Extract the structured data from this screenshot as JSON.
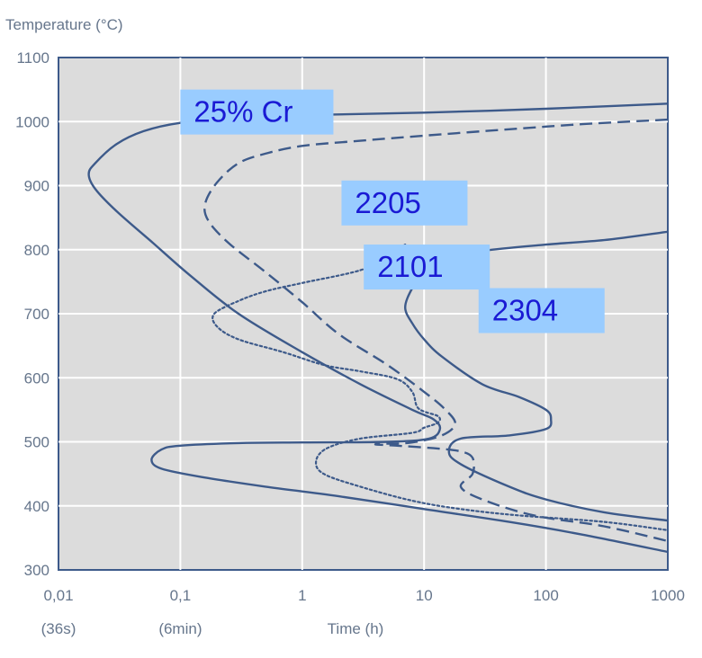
{
  "chart_data": {
    "type": "line",
    "title": "",
    "ylabel": "Temperature (°C)",
    "xlabel": "Time (h)",
    "x_scale": "log",
    "xlim": [
      0.01,
      1000
    ],
    "ylim": [
      300,
      1100
    ],
    "grid": true,
    "x_ticks": [
      {
        "value": 0.01,
        "label": "0,01",
        "sub": "(36s)"
      },
      {
        "value": 0.1,
        "label": "0,1",
        "sub": "(6min)"
      },
      {
        "value": 1,
        "label": "1",
        "sub": ""
      },
      {
        "value": 10,
        "label": "10",
        "sub": ""
      },
      {
        "value": 100,
        "label": "100",
        "sub": ""
      },
      {
        "value": 1000,
        "label": "1000",
        "sub": ""
      }
    ],
    "y_ticks": [
      300,
      400,
      500,
      600,
      700,
      800,
      900,
      1000,
      1100
    ],
    "colors": {
      "curve": "#3d5a8a",
      "plot_bg": "#dcdcdc",
      "grid": "#ffffff",
      "label_bg": "#99ccff",
      "label_text": "#1a1ad4"
    },
    "series": [
      {
        "name": "25% Cr",
        "style": "solid",
        "label_at": [
          0.1,
          1050
        ],
        "points": [
          [
            1000,
            1028
          ],
          [
            100,
            1020
          ],
          [
            10,
            1014
          ],
          [
            1,
            1010
          ],
          [
            0.3,
            1006
          ],
          [
            0.1,
            998
          ],
          [
            0.05,
            985
          ],
          [
            0.03,
            965
          ],
          [
            0.02,
            935
          ],
          [
            0.0177,
            918
          ],
          [
            0.02,
            895
          ],
          [
            0.03,
            860
          ],
          [
            0.06,
            810
          ],
          [
            0.12,
            760
          ],
          [
            0.3,
            700
          ],
          [
            1,
            640
          ],
          [
            3,
            590
          ],
          [
            8,
            550
          ],
          [
            12,
            535
          ],
          [
            13.5,
            520
          ],
          [
            11,
            505
          ],
          [
            5,
            500
          ],
          [
            1,
            499
          ],
          [
            0.3,
            498
          ],
          [
            0.1,
            494
          ],
          [
            0.07,
            488
          ],
          [
            0.058,
            472
          ],
          [
            0.07,
            458
          ],
          [
            0.15,
            445
          ],
          [
            0.5,
            430
          ],
          [
            2,
            415
          ],
          [
            10,
            395
          ],
          [
            50,
            375
          ],
          [
            200,
            355
          ],
          [
            1000,
            328
          ]
        ]
      },
      {
        "name": "2205",
        "style": "dashed",
        "label_at": [
          2.1,
          908
        ],
        "points": [
          [
            1000,
            1003
          ],
          [
            200,
            996
          ],
          [
            50,
            988
          ],
          [
            10,
            978
          ],
          [
            3,
            970
          ],
          [
            1,
            962
          ],
          [
            0.5,
            950
          ],
          [
            0.3,
            935
          ],
          [
            0.2,
            905
          ],
          [
            0.16,
            872
          ],
          [
            0.17,
            845
          ],
          [
            0.25,
            810
          ],
          [
            0.5,
            765
          ],
          [
            1,
            718
          ],
          [
            2,
            668
          ],
          [
            5,
            620
          ],
          [
            10,
            578
          ],
          [
            15,
            550
          ],
          [
            18,
            528
          ],
          [
            14,
            510
          ],
          [
            8,
            499
          ],
          [
            5,
            497
          ],
          [
            4,
            496
          ],
          [
            6,
            494
          ],
          [
            12,
            490
          ],
          [
            20,
            485
          ],
          [
            25,
            475
          ],
          [
            25,
            450
          ],
          [
            20,
            430
          ],
          [
            30,
            410
          ],
          [
            80,
            385
          ],
          [
            300,
            368
          ],
          [
            1000,
            345
          ]
        ]
      },
      {
        "name": "2101",
        "style": "dotted",
        "label_at": [
          3.2,
          808
        ],
        "points": [
          [
            7,
            808
          ],
          [
            5,
            790
          ],
          [
            3,
            768
          ],
          [
            1,
            748
          ],
          [
            0.5,
            735
          ],
          [
            0.3,
            720
          ],
          [
            0.19,
            700
          ],
          [
            0.2,
            680
          ],
          [
            0.3,
            660
          ],
          [
            0.7,
            640
          ],
          [
            1.5,
            620
          ],
          [
            3,
            610
          ],
          [
            6,
            598
          ],
          [
            8,
            578
          ],
          [
            9,
            552
          ],
          [
            13,
            540
          ],
          [
            13,
            530
          ],
          [
            10,
            522
          ],
          [
            8,
            514
          ],
          [
            3,
            505
          ],
          [
            1.6,
            490
          ],
          [
            1.3,
            470
          ],
          [
            1.5,
            450
          ],
          [
            3,
            430
          ],
          [
            8,
            408
          ],
          [
            20,
            395
          ],
          [
            60,
            385
          ],
          [
            300,
            375
          ],
          [
            1000,
            362
          ]
        ]
      },
      {
        "name": "2304",
        "style": "solid",
        "label_at": [
          28,
          740
        ],
        "points": [
          [
            1000,
            828
          ],
          [
            300,
            815
          ],
          [
            100,
            808
          ],
          [
            30,
            798
          ],
          [
            15,
            785
          ],
          [
            10,
            765
          ],
          [
            8,
            740
          ],
          [
            7,
            710
          ],
          [
            8,
            685
          ],
          [
            10,
            660
          ],
          [
            14,
            633
          ],
          [
            30,
            590
          ],
          [
            60,
            570
          ],
          [
            100,
            550
          ],
          [
            110,
            535
          ],
          [
            100,
            520
          ],
          [
            50,
            510
          ],
          [
            20,
            505
          ],
          [
            16,
            485
          ],
          [
            20,
            465
          ],
          [
            50,
            430
          ],
          [
            100,
            410
          ],
          [
            300,
            390
          ],
          [
            1000,
            377
          ]
        ]
      }
    ]
  }
}
